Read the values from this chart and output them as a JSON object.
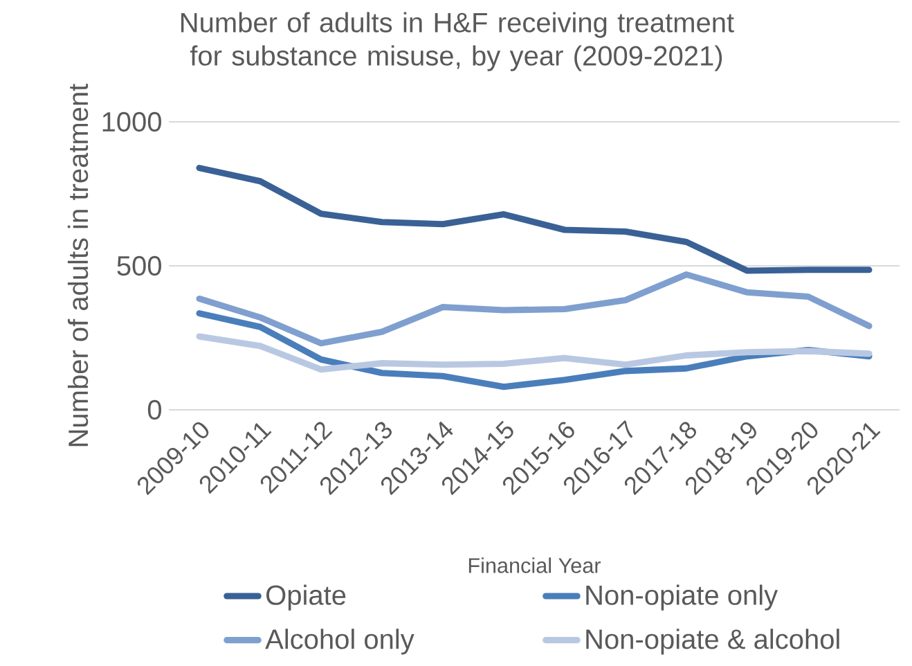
{
  "chart_data": {
    "type": "line",
    "title": "Number of adults in H&F receiving treatment for substance misuse, by year (2009-2021)",
    "xlabel": "Financial Year",
    "ylabel": "Number of adults in treatment",
    "categories": [
      "2009-10",
      "2010-11",
      "2011-12",
      "2012-13",
      "2013-14",
      "2014-15",
      "2015-16",
      "2016-17",
      "2017-18",
      "2018-19",
      "2019-20",
      "2020-21"
    ],
    "series": [
      {
        "name": "Opiate",
        "color": "#3a6196",
        "values": [
          840,
          794,
          681,
          652,
          645,
          679,
          625,
          619,
          583,
          483,
          486,
          486
        ]
      },
      {
        "name": "Non-opiate only",
        "color": "#4a7ebb",
        "values": [
          335,
          288,
          175,
          128,
          117,
          80,
          104,
          135,
          144,
          186,
          208,
          186
        ]
      },
      {
        "name": "Alcohol only",
        "color": "#7f9fcf",
        "values": [
          386,
          321,
          231,
          271,
          357,
          346,
          350,
          381,
          470,
          408,
          393,
          291
        ]
      },
      {
        "name": "Non-opiate & alcohol",
        "color": "#b9c8e2",
        "values": [
          255,
          222,
          140,
          162,
          157,
          160,
          180,
          157,
          189,
          200,
          204,
          195
        ]
      }
    ],
    "ylim": [
      0,
      1000
    ],
    "yticks": [
      0,
      500,
      1000
    ],
    "grid": "y",
    "legend": "bottom",
    "marker": "none",
    "line_style": "solid"
  }
}
